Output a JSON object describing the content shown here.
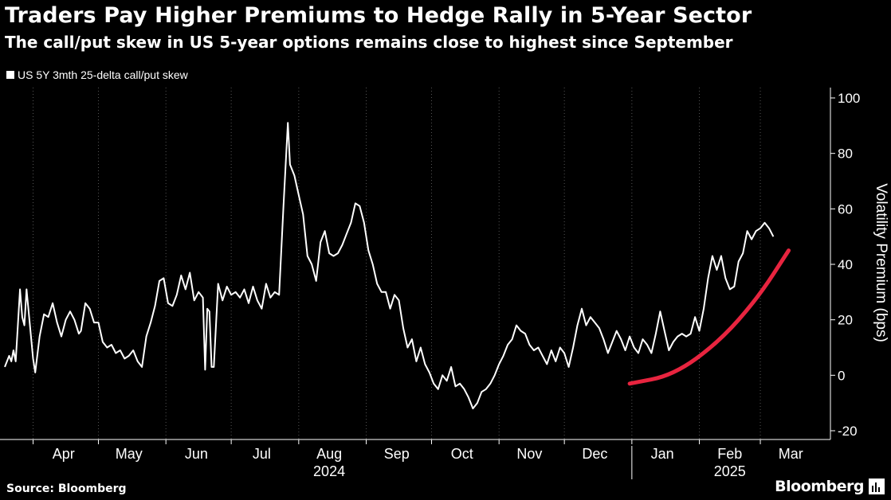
{
  "title": "Traders Pay Higher Premiums to Hedge Rally in 5-Year Sector",
  "subtitle": "The call/put skew in US 5-year options remains close to highest since September",
  "legend_label": "US 5Y 3mth 25-delta call/put skew",
  "source": "Source: Bloomberg",
  "brand": "Bloomberg",
  "colors": {
    "background": "#000000",
    "line": "#ffffff",
    "annotation": "#e8243f",
    "grid": "#555555"
  },
  "chart_data": {
    "type": "line",
    "ylabel": "Volatility Premium (bps)",
    "ylim": [
      -20,
      100
    ],
    "yticks": [
      -20,
      0,
      20,
      40,
      60,
      80,
      100
    ],
    "xlim": [
      "2024-03-19",
      "2025-03-31"
    ],
    "month_ticks": [
      {
        "label": "Apr",
        "date": "2024-04-15"
      },
      {
        "label": "May",
        "date": "2024-05-15"
      },
      {
        "label": "Jun",
        "date": "2024-06-15"
      },
      {
        "label": "Jul",
        "date": "2024-07-15"
      },
      {
        "label": "Aug",
        "date": "2024-08-15"
      },
      {
        "label": "Sep",
        "date": "2024-09-15"
      },
      {
        "label": "Oct",
        "date": "2024-10-15"
      },
      {
        "label": "Nov",
        "date": "2024-11-15"
      },
      {
        "label": "Dec",
        "date": "2024-12-15"
      },
      {
        "label": "Jan",
        "date": "2025-01-15"
      },
      {
        "label": "Feb",
        "date": "2025-02-15"
      },
      {
        "label": "Mar",
        "date": "2025-03-15"
      }
    ],
    "year_labels": [
      {
        "label": "2024",
        "date": "2024-08-15"
      },
      {
        "label": "2025",
        "date": "2025-02-15"
      }
    ],
    "year_divider": "2025-01-01",
    "grid": "vertical-dotted",
    "series": [
      {
        "values": [
          [
            "2024-03-19",
            3
          ],
          [
            "2024-03-21",
            7
          ],
          [
            "2024-03-22",
            5
          ],
          [
            "2024-03-23",
            9
          ],
          [
            "2024-03-24",
            5
          ],
          [
            "2024-03-26",
            31
          ],
          [
            "2024-03-27",
            21
          ],
          [
            "2024-03-28",
            18
          ],
          [
            "2024-03-29",
            31
          ],
          [
            "2024-04-01",
            6
          ],
          [
            "2024-04-02",
            1
          ],
          [
            "2024-04-04",
            14
          ],
          [
            "2024-04-06",
            22
          ],
          [
            "2024-04-08",
            21
          ],
          [
            "2024-04-10",
            26
          ],
          [
            "2024-04-12",
            19
          ],
          [
            "2024-04-14",
            14
          ],
          [
            "2024-04-16",
            20
          ],
          [
            "2024-04-18",
            23
          ],
          [
            "2024-04-20",
            20
          ],
          [
            "2024-04-22",
            15
          ],
          [
            "2024-04-23",
            16
          ],
          [
            "2024-04-25",
            26
          ],
          [
            "2024-04-27",
            24
          ],
          [
            "2024-04-29",
            19
          ],
          [
            "2024-05-01",
            19
          ],
          [
            "2024-05-03",
            12
          ],
          [
            "2024-05-05",
            10
          ],
          [
            "2024-05-07",
            11
          ],
          [
            "2024-05-09",
            8
          ],
          [
            "2024-05-11",
            9
          ],
          [
            "2024-05-13",
            6
          ],
          [
            "2024-05-15",
            7
          ],
          [
            "2024-05-17",
            9
          ],
          [
            "2024-05-19",
            5
          ],
          [
            "2024-05-21",
            3
          ],
          [
            "2024-05-23",
            14
          ],
          [
            "2024-05-25",
            19
          ],
          [
            "2024-05-27",
            25
          ],
          [
            "2024-05-29",
            34
          ],
          [
            "2024-05-31",
            35
          ],
          [
            "2024-06-02",
            26
          ],
          [
            "2024-06-04",
            25
          ],
          [
            "2024-06-06",
            29
          ],
          [
            "2024-06-08",
            36
          ],
          [
            "2024-06-10",
            31
          ],
          [
            "2024-06-12",
            37
          ],
          [
            "2024-06-14",
            27
          ],
          [
            "2024-06-16",
            30
          ],
          [
            "2024-06-18",
            28
          ],
          [
            "2024-06-19",
            2
          ],
          [
            "2024-06-20",
            24
          ],
          [
            "2024-06-21",
            23
          ],
          [
            "2024-06-22",
            3
          ],
          [
            "2024-06-23",
            3
          ],
          [
            "2024-06-25",
            33
          ],
          [
            "2024-06-27",
            27
          ],
          [
            "2024-06-29",
            32
          ],
          [
            "2024-07-01",
            29
          ],
          [
            "2024-07-03",
            30
          ],
          [
            "2024-07-05",
            28
          ],
          [
            "2024-07-07",
            31
          ],
          [
            "2024-07-09",
            26
          ],
          [
            "2024-07-11",
            32
          ],
          [
            "2024-07-13",
            27
          ],
          [
            "2024-07-15",
            24
          ],
          [
            "2024-07-17",
            33
          ],
          [
            "2024-07-19",
            28
          ],
          [
            "2024-07-21",
            30
          ],
          [
            "2024-07-23",
            29
          ],
          [
            "2024-07-25",
            61
          ],
          [
            "2024-07-27",
            91
          ],
          [
            "2024-07-28",
            76
          ],
          [
            "2024-07-30",
            72
          ],
          [
            "2024-08-01",
            65
          ],
          [
            "2024-08-03",
            58
          ],
          [
            "2024-08-05",
            43
          ],
          [
            "2024-08-07",
            40
          ],
          [
            "2024-08-09",
            34
          ],
          [
            "2024-08-11",
            48
          ],
          [
            "2024-08-13",
            52
          ],
          [
            "2024-08-15",
            44
          ],
          [
            "2024-08-17",
            43
          ],
          [
            "2024-08-19",
            44
          ],
          [
            "2024-08-21",
            47
          ],
          [
            "2024-08-23",
            51
          ],
          [
            "2024-08-25",
            55
          ],
          [
            "2024-08-27",
            62
          ],
          [
            "2024-08-29",
            61
          ],
          [
            "2024-08-31",
            55
          ],
          [
            "2024-09-02",
            45
          ],
          [
            "2024-09-04",
            40
          ],
          [
            "2024-09-06",
            33
          ],
          [
            "2024-09-08",
            30
          ],
          [
            "2024-09-10",
            30
          ],
          [
            "2024-09-12",
            24
          ],
          [
            "2024-09-14",
            29
          ],
          [
            "2024-09-16",
            27
          ],
          [
            "2024-09-18",
            17
          ],
          [
            "2024-09-20",
            10
          ],
          [
            "2024-09-22",
            13
          ],
          [
            "2024-09-24",
            5
          ],
          [
            "2024-09-26",
            10
          ],
          [
            "2024-09-28",
            4
          ],
          [
            "2024-09-30",
            1
          ],
          [
            "2024-10-02",
            -3
          ],
          [
            "2024-10-04",
            -5
          ],
          [
            "2024-10-06",
            0
          ],
          [
            "2024-10-08",
            -2
          ],
          [
            "2024-10-10",
            3
          ],
          [
            "2024-10-12",
            -4
          ],
          [
            "2024-10-14",
            -3
          ],
          [
            "2024-10-16",
            -5
          ],
          [
            "2024-10-18",
            -8
          ],
          [
            "2024-10-20",
            -12
          ],
          [
            "2024-10-22",
            -10
          ],
          [
            "2024-10-24",
            -6
          ],
          [
            "2024-10-26",
            -5
          ],
          [
            "2024-10-28",
            -3
          ],
          [
            "2024-10-30",
            0
          ],
          [
            "2024-11-01",
            4
          ],
          [
            "2024-11-03",
            7
          ],
          [
            "2024-11-05",
            11
          ],
          [
            "2024-11-07",
            13
          ],
          [
            "2024-11-09",
            18
          ],
          [
            "2024-11-11",
            16
          ],
          [
            "2024-11-13",
            15
          ],
          [
            "2024-11-15",
            11
          ],
          [
            "2024-11-17",
            9
          ],
          [
            "2024-11-19",
            10
          ],
          [
            "2024-11-21",
            7
          ],
          [
            "2024-11-23",
            4
          ],
          [
            "2024-11-25",
            9
          ],
          [
            "2024-11-27",
            5
          ],
          [
            "2024-11-29",
            10
          ],
          [
            "2024-12-01",
            8
          ],
          [
            "2024-12-03",
            3
          ],
          [
            "2024-12-05",
            10
          ],
          [
            "2024-12-07",
            18
          ],
          [
            "2024-12-09",
            24
          ],
          [
            "2024-12-11",
            18
          ],
          [
            "2024-12-13",
            21
          ],
          [
            "2024-12-15",
            19
          ],
          [
            "2024-12-17",
            17
          ],
          [
            "2024-12-19",
            13
          ],
          [
            "2024-12-21",
            8
          ],
          [
            "2024-12-23",
            12
          ],
          [
            "2024-12-25",
            16
          ],
          [
            "2024-12-27",
            13
          ],
          [
            "2024-12-29",
            9
          ],
          [
            "2024-12-31",
            14
          ],
          [
            "2025-01-02",
            10
          ],
          [
            "2025-01-04",
            8
          ],
          [
            "2025-01-06",
            13
          ],
          [
            "2025-01-08",
            11
          ],
          [
            "2025-01-10",
            8
          ],
          [
            "2025-01-12",
            15
          ],
          [
            "2025-01-14",
            23
          ],
          [
            "2025-01-16",
            16
          ],
          [
            "2025-01-18",
            9
          ],
          [
            "2025-01-20",
            12
          ],
          [
            "2025-01-22",
            14
          ],
          [
            "2025-01-24",
            15
          ],
          [
            "2025-01-26",
            14
          ],
          [
            "2025-01-28",
            15
          ],
          [
            "2025-01-30",
            21
          ],
          [
            "2025-02-01",
            16
          ],
          [
            "2025-02-03",
            24
          ],
          [
            "2025-02-05",
            35
          ],
          [
            "2025-02-07",
            43
          ],
          [
            "2025-02-09",
            38
          ],
          [
            "2025-02-11",
            43
          ],
          [
            "2025-02-13",
            35
          ],
          [
            "2025-02-15",
            31
          ],
          [
            "2025-02-17",
            32
          ],
          [
            "2025-02-19",
            41
          ],
          [
            "2025-02-21",
            44
          ],
          [
            "2025-02-23",
            52
          ],
          [
            "2025-02-25",
            49
          ],
          [
            "2025-02-27",
            52
          ],
          [
            "2025-03-01",
            53
          ],
          [
            "2025-03-03",
            55
          ],
          [
            "2025-03-05",
            53
          ],
          [
            "2025-03-07",
            50
          ]
        ]
      }
    ],
    "annotation": {
      "type": "curved-arrow-path",
      "points": [
        [
          "2024-12-31",
          -3
        ],
        [
          "2025-01-20",
          0
        ],
        [
          "2025-02-10",
          12
        ],
        [
          "2025-02-28",
          28
        ],
        [
          "2025-03-14",
          45
        ]
      ]
    }
  }
}
